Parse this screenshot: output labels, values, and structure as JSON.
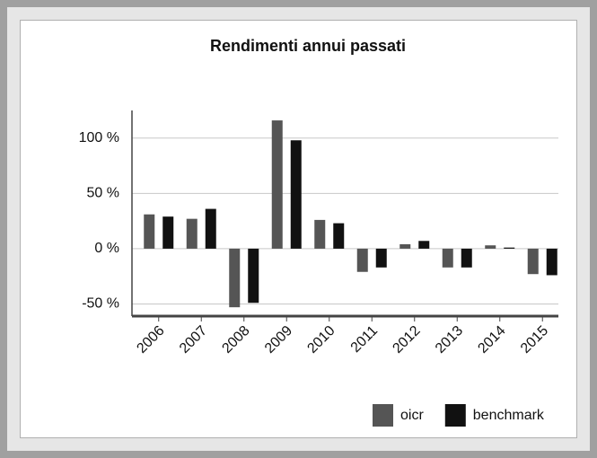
{
  "chart_data": {
    "type": "bar",
    "title": "Rendimenti annui passati",
    "categories": [
      "2006",
      "2007",
      "2008",
      "2009",
      "2010",
      "2011",
      "2012",
      "2013",
      "2014",
      "2015"
    ],
    "series": [
      {
        "name": "oicr",
        "color": "#555555",
        "values": [
          31,
          27,
          -53,
          116,
          26,
          -21,
          4,
          -17,
          3,
          -23
        ]
      },
      {
        "name": "benchmark",
        "color": "#111111",
        "values": [
          29,
          36,
          -49,
          98,
          23,
          -17,
          7,
          -17,
          1,
          -24
        ]
      }
    ],
    "ylim": [
      -61,
      125
    ],
    "yticks": [
      {
        "value": -50,
        "label": "-50 %"
      },
      {
        "value": 0,
        "label": "0 %"
      },
      {
        "value": 50,
        "label": "50 %"
      },
      {
        "value": 100,
        "label": "100 %"
      }
    ],
    "grid": true,
    "legend": "bottom-right"
  }
}
